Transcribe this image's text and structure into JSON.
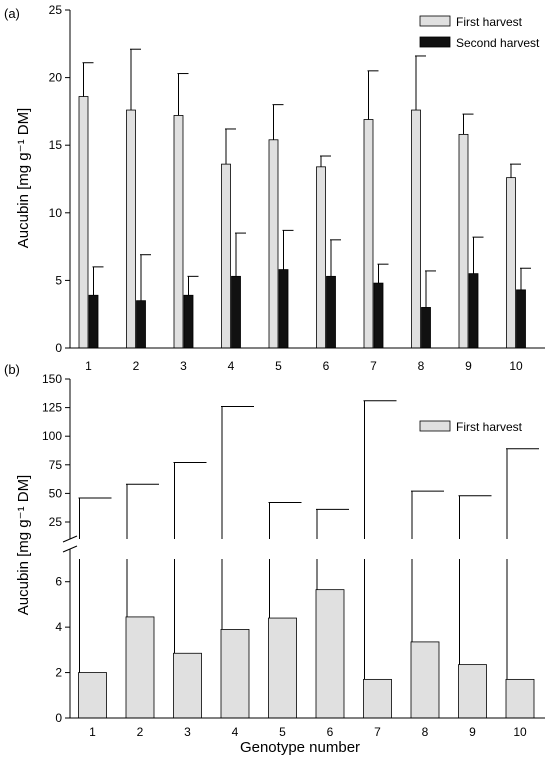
{
  "chart_data": [
    {
      "type": "bar",
      "panel_label": "(a)",
      "categories": [
        "1",
        "2",
        "3",
        "4",
        "5",
        "6",
        "7",
        "8",
        "9",
        "10"
      ],
      "series": [
        {
          "name": "First harvest",
          "color": "#e0e0e0",
          "values": [
            18.6,
            17.6,
            17.2,
            13.6,
            15.4,
            13.4,
            16.9,
            17.6,
            15.8,
            12.6
          ],
          "error_upper": [
            2.5,
            4.5,
            3.1,
            2.6,
            2.6,
            0.8,
            3.6,
            4.0,
            1.5,
            1.0
          ]
        },
        {
          "name": "Second harvest",
          "color": "#111111",
          "values": [
            3.9,
            3.5,
            3.9,
            5.3,
            5.8,
            5.3,
            4.8,
            3.0,
            5.5,
            4.3
          ],
          "error_upper": [
            2.1,
            3.4,
            1.4,
            3.2,
            2.9,
            2.7,
            1.4,
            2.7,
            2.7,
            1.6
          ]
        }
      ],
      "xlabel": "",
      "ylabel": "Aucubin [mg g⁻¹ DM]",
      "ylim": [
        0,
        25
      ],
      "yticks": [
        "0",
        "5",
        "10",
        "15",
        "20",
        "25"
      ],
      "legend_position": "top-right",
      "grid": false
    },
    {
      "type": "bar",
      "panel_label": "(b)",
      "categories": [
        "1",
        "2",
        "3",
        "4",
        "5",
        "6",
        "7",
        "8",
        "9",
        "10"
      ],
      "series": [
        {
          "name": "First harvest",
          "color": "#e0e0e0",
          "values": [
            2.0,
            4.45,
            2.85,
            3.9,
            4.4,
            5.65,
            1.7,
            3.35,
            2.35,
            1.7
          ],
          "error_top": [
            46,
            58,
            77,
            126,
            42,
            36,
            131,
            52,
            48,
            89
          ]
        }
      ],
      "xlabel": "Genotype number",
      "ylabel": "Aucubin [mg g⁻¹ DM]",
      "y_axis_break": true,
      "ylim_lower": [
        0,
        7
      ],
      "yticks_lower": [
        "0",
        "2",
        "4",
        "6"
      ],
      "ylim_upper": [
        25,
        150
      ],
      "yticks_upper": [
        "25",
        "50",
        "75",
        "100",
        "125",
        "150"
      ],
      "legend_position": "top-right",
      "grid": false
    }
  ]
}
